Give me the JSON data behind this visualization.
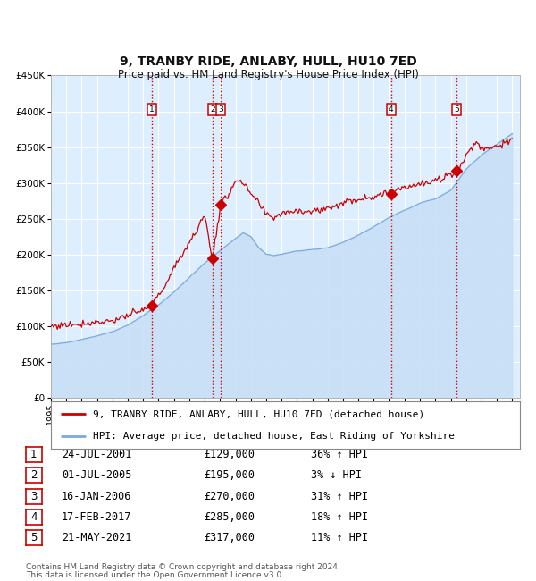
{
  "title": "9, TRANBY RIDE, ANLABY, HULL, HU10 7ED",
  "subtitle": "Price paid vs. HM Land Registry's House Price Index (HPI)",
  "legend_line1": "9, TRANBY RIDE, ANLABY, HULL, HU10 7ED (detached house)",
  "legend_line2": "HPI: Average price, detached house, East Riding of Yorkshire",
  "footnote1": "Contains HM Land Registry data © Crown copyright and database right 2024.",
  "footnote2": "This data is licensed under the Open Government Licence v3.0.",
  "ylim": [
    0,
    450000
  ],
  "yticks": [
    0,
    50000,
    100000,
    150000,
    200000,
    250000,
    300000,
    350000,
    400000,
    450000
  ],
  "ytick_labels": [
    "£0",
    "£50K",
    "£100K",
    "£150K",
    "£200K",
    "£250K",
    "£300K",
    "£350K",
    "£400K",
    "£450K"
  ],
  "sale_dates_decimal": [
    2001.558,
    2005.497,
    2006.044,
    2017.126,
    2021.384
  ],
  "sale_prices": [
    129000,
    195000,
    270000,
    285000,
    317000
  ],
  "sale_labels": [
    "1",
    "2",
    "3",
    "4",
    "5"
  ],
  "sale_label_info": [
    {
      "num": "1",
      "date": "24-JUL-2001",
      "price": "£129,000",
      "hpi": "36% ↑ HPI"
    },
    {
      "num": "2",
      "date": "01-JUL-2005",
      "price": "£195,000",
      "hpi": "3% ↓ HPI"
    },
    {
      "num": "3",
      "date": "16-JAN-2006",
      "price": "£270,000",
      "hpi": "31% ↑ HPI"
    },
    {
      "num": "4",
      "date": "17-FEB-2017",
      "price": "£285,000",
      "hpi": "18% ↑ HPI"
    },
    {
      "num": "5",
      "date": "21-MAY-2021",
      "price": "£317,000",
      "hpi": "11% ↑ HPI"
    }
  ],
  "red_line_color": "#cc0000",
  "blue_line_color": "#7aaadd",
  "fill_color": "#c8dff5",
  "bg_color": "#ddeeff",
  "grid_color": "#ffffff",
  "vline_color": "#cc0000",
  "title_fontsize": 10,
  "subtitle_fontsize": 8.5,
  "tick_fontsize": 7.5,
  "legend_fontsize": 8,
  "table_fontsize": 8.5,
  "footnote_fontsize": 6.5,
  "hpi_waypoints_x": [
    1995.0,
    1996.0,
    1997.0,
    1998.0,
    1999.0,
    2000.0,
    2001.0,
    2002.0,
    2003.0,
    2004.0,
    2005.0,
    2006.0,
    2007.0,
    2007.5,
    2008.0,
    2008.5,
    2009.0,
    2009.5,
    2010.0,
    2011.0,
    2012.0,
    2013.0,
    2014.0,
    2015.0,
    2016.0,
    2017.0,
    2018.0,
    2019.0,
    2020.0,
    2021.0,
    2022.0,
    2023.0,
    2024.0,
    2025.0
  ],
  "hpi_waypoints_y": [
    75000,
    78000,
    82000,
    87000,
    93000,
    102000,
    115000,
    130000,
    148000,
    168000,
    188000,
    205000,
    222000,
    230000,
    225000,
    210000,
    200000,
    198000,
    200000,
    205000,
    207000,
    210000,
    218000,
    228000,
    240000,
    252000,
    262000,
    272000,
    278000,
    290000,
    320000,
    340000,
    355000,
    370000
  ],
  "prop_waypoints_x": [
    1995.0,
    1997.0,
    1999.0,
    2001.0,
    2001.558,
    2002.5,
    2003.5,
    2004.5,
    2005.0,
    2005.497,
    2006.044,
    2006.5,
    2007.0,
    2007.5,
    2008.0,
    2008.5,
    2009.0,
    2009.5,
    2010.0,
    2011.0,
    2012.0,
    2013.0,
    2014.0,
    2015.0,
    2016.0,
    2017.126,
    2017.5,
    2018.0,
    2019.0,
    2020.0,
    2021.384,
    2021.8,
    2022.2,
    2022.7,
    2023.0,
    2023.5,
    2024.0,
    2024.5,
    2025.0
  ],
  "prop_waypoints_y": [
    100000,
    104000,
    108000,
    122000,
    129000,
    160000,
    200000,
    235000,
    255000,
    195000,
    270000,
    282000,
    305000,
    298000,
    285000,
    272000,
    255000,
    252000,
    258000,
    262000,
    260000,
    265000,
    272000,
    278000,
    282000,
    285000,
    292000,
    295000,
    298000,
    302000,
    317000,
    330000,
    345000,
    358000,
    348000,
    350000,
    352000,
    355000,
    358000
  ]
}
